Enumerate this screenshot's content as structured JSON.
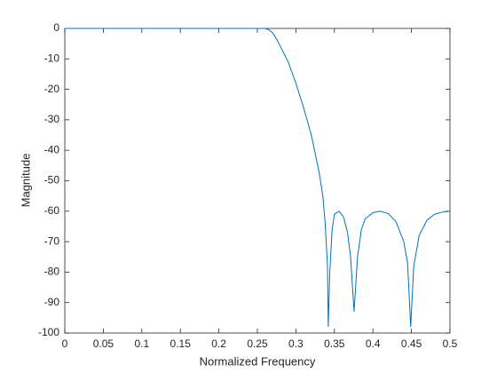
{
  "chart_data": {
    "type": "line",
    "xlabel": "Normalized Frequency",
    "ylabel": "Magnitude",
    "x": [
      0,
      0.05,
      0.1,
      0.15,
      0.2,
      0.25,
      0.26,
      0.265,
      0.27,
      0.275,
      0.28,
      0.29,
      0.3,
      0.31,
      0.32,
      0.33,
      0.335,
      0.338,
      0.341,
      0.342,
      0.344,
      0.347,
      0.35,
      0.356,
      0.362,
      0.367,
      0.371,
      0.3755,
      0.38,
      0.385,
      0.39,
      0.4,
      0.409,
      0.42,
      0.43,
      0.44,
      0.445,
      0.449,
      0.453,
      0.46,
      0.47,
      0.48,
      0.49,
      0.5
    ],
    "series": [
      {
        "color": "#0072bd",
        "values": [
          0,
          0,
          0,
          0,
          0,
          0,
          0,
          -0.5,
          -1.5,
          -3.5,
          -6,
          -11,
          -18,
          -26,
          -35,
          -47,
          -55,
          -64,
          -78,
          -98,
          -80,
          -66,
          -61,
          -60,
          -62,
          -67,
          -75,
          -93,
          -75,
          -66,
          -62.5,
          -60.5,
          -60,
          -60.8,
          -63.5,
          -70,
          -77,
          -98,
          -78,
          -68,
          -63,
          -61,
          -60.3,
          -60
        ]
      }
    ],
    "xlim": [
      0,
      0.5
    ],
    "xticks": [
      0,
      0.05,
      0.1,
      0.15,
      0.2,
      0.25,
      0.3,
      0.35,
      0.4,
      0.45,
      0.5
    ],
    "ylim": [
      -100,
      0
    ],
    "yticks": [
      -100,
      -90,
      -80,
      -70,
      -60,
      -50,
      -40,
      -30,
      -20,
      -10,
      0
    ],
    "grid": false
  }
}
